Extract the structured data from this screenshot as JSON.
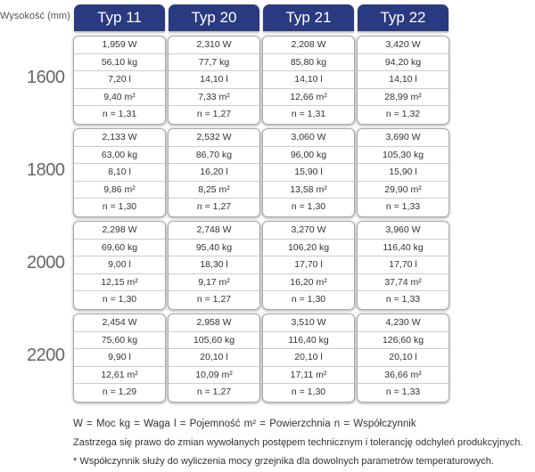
{
  "height_label": "Wysokość (mm)",
  "columns": [
    "Typ 11",
    "Typ 20",
    "Typ 21",
    "Typ 22"
  ],
  "groups": [
    {
      "height": "1600",
      "cells": [
        [
          "1,959 W",
          "56,10 kg",
          "7,20 l",
          "9,40 m²",
          "n = 1,31"
        ],
        [
          "2,310 W",
          "77,7 kg",
          "14,10 l",
          "7,33 m²",
          "n = 1,27"
        ],
        [
          "2,208 W",
          "85,80 kg",
          "14,10 l",
          "12,66 m²",
          "n = 1,31"
        ],
        [
          "3,420 W",
          "94,20 kg",
          "14,10 l",
          "28,99 m²",
          "n = 1,32"
        ]
      ]
    },
    {
      "height": "1800",
      "cells": [
        [
          "2,133 W",
          "63,00 kg",
          "8,10 l",
          "9,86 m²",
          "n = 1,30"
        ],
        [
          "2,532 W",
          "86,70 kg",
          "16,20 l",
          "8,25 m²",
          "n = 1,27"
        ],
        [
          "3,060 W",
          "96,00 kg",
          "15,90 l",
          "13,58 m²",
          "n = 1,30"
        ],
        [
          "3,690 W",
          "105,30 kg",
          "15,90 l",
          "29,90 m²",
          "n = 1,33"
        ]
      ]
    },
    {
      "height": "2000",
      "cells": [
        [
          "2,298 W",
          "69,60 kg",
          "9,00 l",
          "12,15 m²",
          "n = 1,30"
        ],
        [
          "2,748 W",
          "95,40 kg",
          "18,30 l",
          "9,17 m²",
          "n = 1,27"
        ],
        [
          "3,270 W",
          "106,20 kg",
          "17,70 l",
          "16,20 m²",
          "n = 1,30"
        ],
        [
          "3,960 W",
          "116,40 kg",
          "17,70 l",
          "37,74 m²",
          "n = 1,33"
        ]
      ]
    },
    {
      "height": "2200",
      "cells": [
        [
          "2,454 W",
          "75,60 kg",
          "9,90 l",
          "12,61 m²",
          "n = 1,29"
        ],
        [
          "2,958 W",
          "105,60 kg",
          "20,10 l",
          "10,09 m²",
          "n = 1,27"
        ],
        [
          "3,510 W",
          "116,40 kg",
          "20,10 l",
          "17,11 m²",
          "n = 1,30"
        ],
        [
          "4,230 W",
          "126,60 kg",
          "20,10 l",
          "36,66 m²",
          "n = 1,33"
        ]
      ]
    }
  ],
  "legend": "W = Moc   kg = Waga   l = Pojemność   m² = Powierzchnia   n = Współczynnik",
  "note1": "Zastrzega się prawo do zmian wywołanych postępem technicznym i tolerancję odchyleń produkcyjnych.",
  "note2": "* Współczynnik służy do wyliczenia mocy grzejnika dla dowolnych parametrów temperaturowych."
}
